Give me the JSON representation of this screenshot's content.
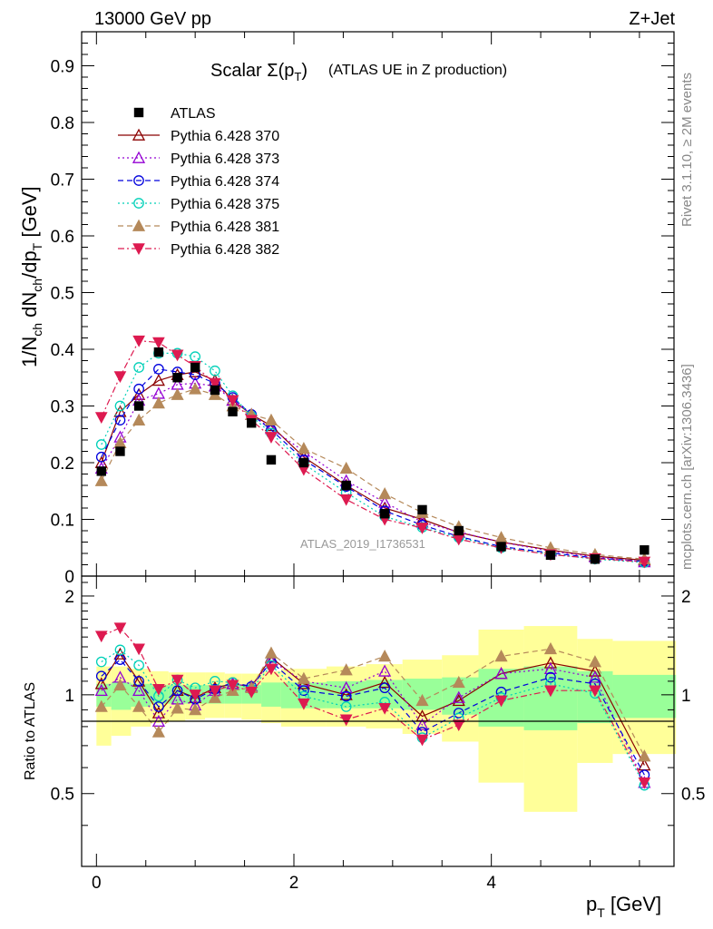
{
  "header": {
    "left": "13000 GeV pp",
    "right": "Z+Jet"
  },
  "main_title": {
    "prefix": "Scalar Σ(p",
    "sub": "T",
    "suffix": ")",
    "note": "(ATLAS UE in Z production)"
  },
  "side_labels": {
    "rivet": "Rivet 3.1.10, ≥ 2M events",
    "mcplots": "mcplots.cern.ch [arXiv:1306.3436]"
  },
  "watermark": "ATLAS_2019_I1736531",
  "y_label_main": {
    "a": "1/N",
    "a_sub": "ch",
    "b": " dN",
    "b_sub": "ch",
    "c": "/dp",
    "c_sub": "T",
    "d": " [GeV]"
  },
  "y_label_ratio": "Ratio to ATLAS",
  "x_label": {
    "p": "p",
    "sub": "T",
    "unit": " [GeV]"
  },
  "colors": {
    "band_inner": "#99ff99",
    "band_outer": "#ffff99",
    "p370": "#8b0000",
    "p373": "#9400d3",
    "p374": "#0000dd",
    "p375": "#00d0b8",
    "p381": "#b5895a",
    "p382": "#dd1a50"
  },
  "chart_data": [
    {
      "type": "scatter",
      "title": "Scalar Σ(pT) (ATLAS UE in Z production)",
      "xlim": [
        -0.15,
        5.85
      ],
      "ylim": [
        0,
        0.96
      ],
      "yticks": [
        0,
        0.1,
        0.2,
        0.3,
        0.4,
        0.5,
        0.6,
        0.7,
        0.8,
        0.9
      ],
      "ytick_labels": [
        "0",
        "0.1",
        "0.2",
        "0.3",
        "0.4",
        "0.5",
        "0.6",
        "0.7",
        "0.8",
        "0.9"
      ],
      "x": [
        0.05,
        0.24,
        0.43,
        0.63,
        0.82,
        1.0,
        1.2,
        1.38,
        1.57,
        1.77,
        2.1,
        2.53,
        2.92,
        3.3,
        3.67,
        4.1,
        4.6,
        5.05,
        5.55
      ],
      "legend_position": "top-left",
      "series": [
        {
          "name": "ATLAS",
          "key": "atlas",
          "marker": "square",
          "dash": "none",
          "values": [
            0.185,
            0.22,
            0.3,
            0.395,
            0.35,
            0.368,
            0.328,
            0.29,
            0.27,
            0.205,
            0.2,
            0.16,
            0.11,
            0.117,
            0.08,
            0.052,
            0.037,
            0.03,
            0.046
          ]
        },
        {
          "name": "Pythia 6.428 370",
          "key": "p370",
          "marker": "triangle-open",
          "dash": "solid",
          "values": [
            0.2,
            0.29,
            0.32,
            0.345,
            0.355,
            0.36,
            0.345,
            0.31,
            0.285,
            0.265,
            0.21,
            0.16,
            0.12,
            0.1,
            0.077,
            0.06,
            0.046,
            0.035,
            0.028
          ]
        },
        {
          "name": "Pythia 6.428 373",
          "key": "p373",
          "marker": "triangle-open",
          "dash": "dotted",
          "values": [
            0.19,
            0.245,
            0.31,
            0.322,
            0.338,
            0.34,
            0.335,
            0.31,
            0.285,
            0.26,
            0.22,
            0.168,
            0.13,
            0.095,
            0.078,
            0.06,
            0.044,
            0.034,
            0.025
          ]
        },
        {
          "name": "Pythia 6.428 374",
          "key": "p374",
          "marker": "circle-open",
          "dash": "dashed",
          "values": [
            0.21,
            0.275,
            0.33,
            0.365,
            0.36,
            0.355,
            0.34,
            0.315,
            0.285,
            0.258,
            0.205,
            0.158,
            0.115,
            0.09,
            0.07,
            0.052,
            0.041,
            0.032,
            0.026
          ]
        },
        {
          "name": "Pythia 6.428 375",
          "key": "p375",
          "marker": "circle-open",
          "dash": "dotted",
          "values": [
            0.232,
            0.3,
            0.368,
            0.393,
            0.393,
            0.387,
            0.362,
            0.318,
            0.282,
            0.252,
            0.198,
            0.147,
            0.105,
            0.086,
            0.068,
            0.05,
            0.039,
            0.03,
            0.024
          ]
        },
        {
          "name": "Pythia 6.428 381",
          "key": "p381",
          "marker": "triangle-filled",
          "dash": "dashed",
          "values": [
            0.168,
            0.235,
            0.275,
            0.305,
            0.32,
            0.33,
            0.32,
            0.3,
            0.285,
            0.275,
            0.225,
            0.19,
            0.145,
            0.112,
            0.087,
            0.068,
            0.05,
            0.038,
            0.03
          ]
        },
        {
          "name": "Pythia 6.428 382",
          "key": "p382",
          "marker": "triangle-down-filled",
          "dash": "dashdot",
          "values": [
            0.28,
            0.352,
            0.415,
            0.412,
            0.39,
            0.37,
            0.34,
            0.31,
            0.275,
            0.245,
            0.188,
            0.135,
            0.1,
            0.085,
            0.065,
            0.05,
            0.038,
            0.031,
            0.025
          ]
        }
      ]
    },
    {
      "type": "scatter",
      "ylabel": "Ratio to ATLAS",
      "xlabel": "pT [GeV]",
      "xlim": [
        -0.15,
        5.85
      ],
      "ylim": [
        0.3,
        2.3
      ],
      "yticks": [
        0.5,
        1,
        2
      ],
      "ytick_labels": [
        "0.5",
        "1",
        "2"
      ],
      "xticks": [
        0,
        2,
        4
      ],
      "xtick_labels": [
        "0",
        "2",
        "4"
      ],
      "x": [
        0.05,
        0.24,
        0.43,
        0.63,
        0.82,
        1.0,
        1.2,
        1.38,
        1.57,
        1.77,
        2.1,
        2.53,
        2.92,
        3.3,
        3.67,
        4.1,
        4.6,
        5.05,
        5.55
      ],
      "bins": [
        0,
        0.15,
        0.35,
        0.55,
        0.73,
        0.9,
        1.1,
        1.3,
        1.47,
        1.67,
        1.87,
        2.33,
        2.73,
        3.1,
        3.5,
        3.87,
        4.33,
        4.87,
        5.23,
        5.87
      ],
      "band_inner": {
        "low": [
          0.92,
          0.9,
          0.92,
          0.94,
          0.94,
          0.94,
          0.94,
          0.94,
          0.94,
          0.92,
          0.91,
          0.91,
          0.91,
          0.9,
          0.87,
          0.8,
          0.78,
          0.82,
          0.85
        ],
        "high": [
          1.08,
          1.09,
          1.08,
          1.07,
          1.07,
          1.07,
          1.07,
          1.07,
          1.07,
          1.09,
          1.09,
          1.1,
          1.11,
          1.12,
          1.13,
          1.2,
          1.22,
          1.18,
          1.15
        ]
      },
      "band_outer": {
        "low": [
          0.7,
          0.75,
          0.8,
          0.82,
          0.83,
          0.84,
          0.85,
          0.85,
          0.84,
          0.82,
          0.8,
          0.8,
          0.79,
          0.76,
          0.72,
          0.54,
          0.44,
          0.62,
          0.66
        ],
        "high": [
          1.22,
          1.22,
          1.2,
          1.18,
          1.17,
          1.17,
          1.17,
          1.16,
          1.16,
          1.18,
          1.2,
          1.22,
          1.24,
          1.28,
          1.32,
          1.58,
          1.62,
          1.48,
          1.46
        ]
      },
      "series": [
        {
          "name": "Pythia 6.428 370",
          "key": "p370",
          "values": [
            1.08,
            1.33,
            1.1,
            0.88,
            1.03,
            0.98,
            1.05,
            1.08,
            1.06,
            1.3,
            1.08,
            1.0,
            1.09,
            0.86,
            0.96,
            1.16,
            1.25,
            1.18,
            0.61
          ]
        },
        {
          "name": "Pythia 6.428 373",
          "key": "p373",
          "values": [
            1.03,
            1.13,
            1.03,
            0.83,
            0.97,
            0.93,
            1.03,
            1.08,
            1.06,
            1.27,
            1.1,
            1.05,
            1.18,
            0.81,
            0.98,
            1.16,
            1.2,
            1.13,
            0.54
          ]
        },
        {
          "name": "Pythia 6.428 374",
          "key": "p374",
          "values": [
            1.14,
            1.28,
            1.1,
            0.92,
            1.03,
            0.97,
            1.04,
            1.09,
            1.06,
            1.26,
            1.03,
            0.99,
            1.05,
            0.77,
            0.88,
            1.02,
            1.13,
            1.08,
            0.57
          ]
        },
        {
          "name": "Pythia 6.428 375",
          "key": "p375",
          "values": [
            1.26,
            1.37,
            1.23,
            0.99,
            1.11,
            1.05,
            1.1,
            1.09,
            1.04,
            1.23,
            0.99,
            0.92,
            0.95,
            0.74,
            0.85,
            0.98,
            1.08,
            1.01,
            0.53
          ]
        },
        {
          "name": "Pythia 6.428 381",
          "key": "p381",
          "values": [
            0.92,
            1.07,
            0.92,
            0.77,
            0.91,
            0.9,
            0.98,
            1.03,
            1.05,
            1.34,
            1.12,
            1.19,
            1.31,
            0.96,
            1.09,
            1.31,
            1.38,
            1.26,
            0.65
          ]
        },
        {
          "name": "Pythia 6.428 382",
          "key": "p382",
          "values": [
            1.51,
            1.6,
            1.38,
            1.04,
            1.11,
            1.0,
            1.03,
            1.07,
            1.02,
            1.2,
            0.94,
            0.84,
            0.91,
            0.73,
            0.81,
            0.96,
            1.03,
            1.03,
            0.54
          ]
        }
      ]
    }
  ]
}
